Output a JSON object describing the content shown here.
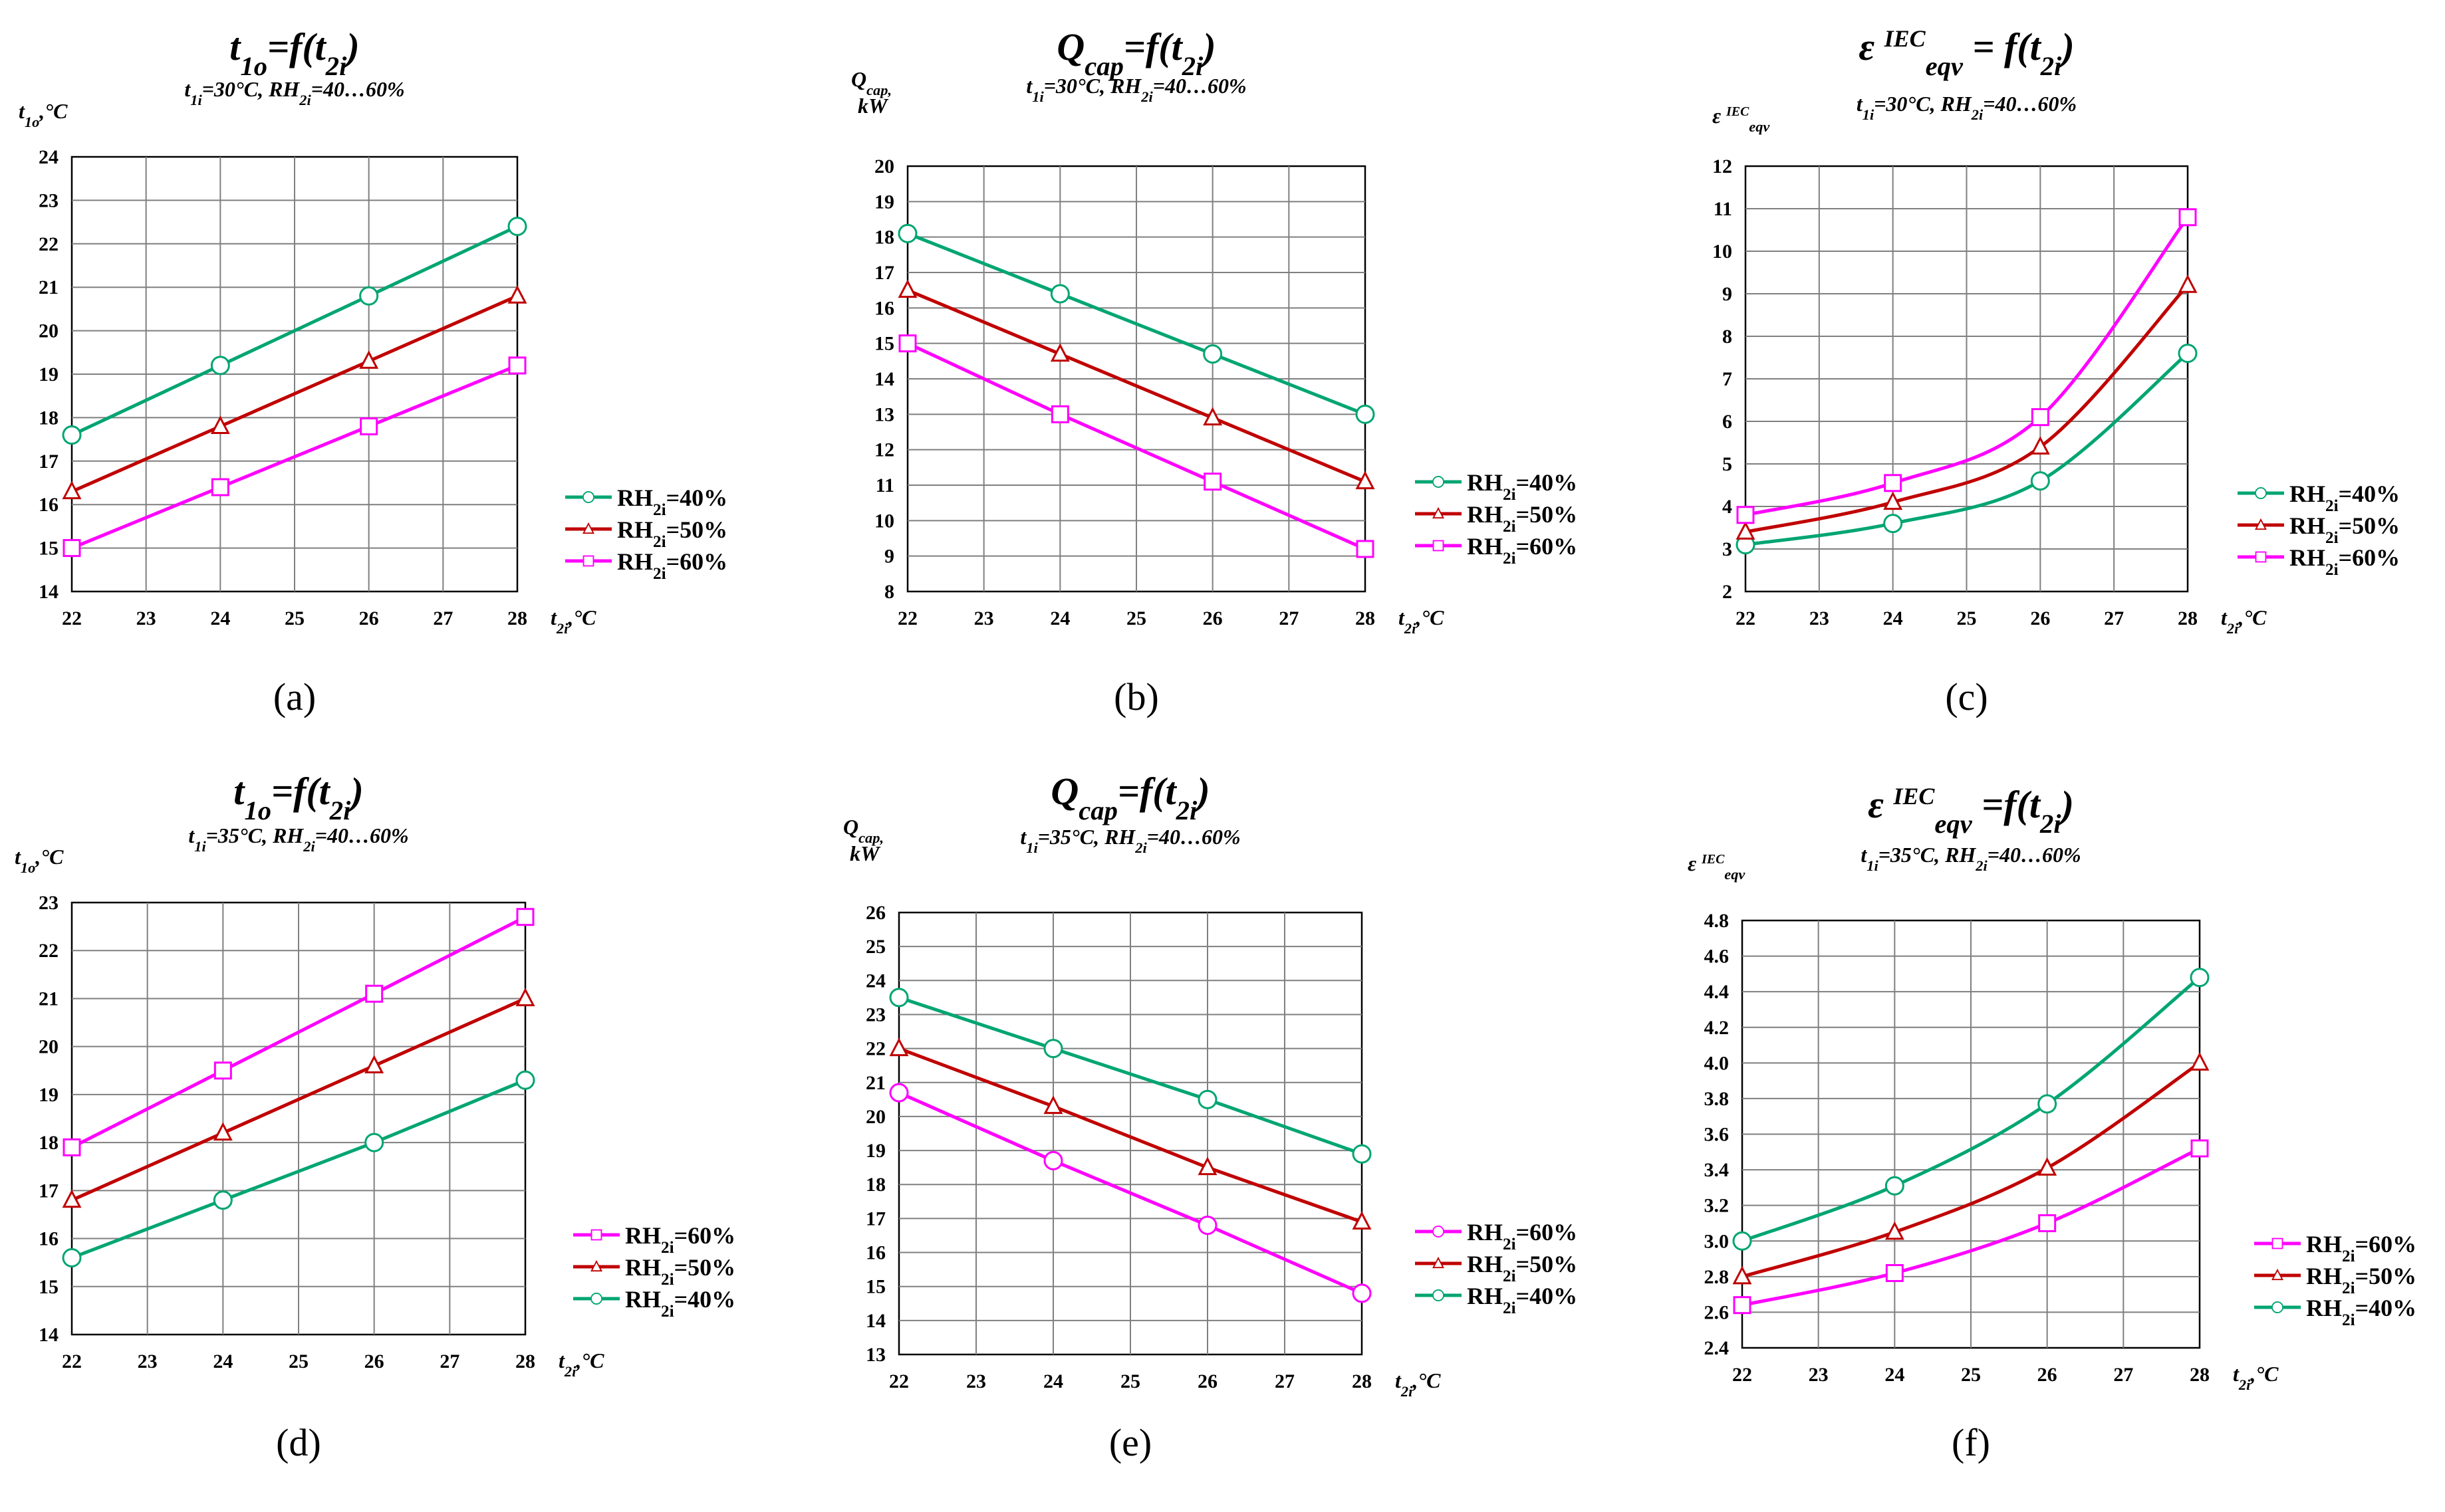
{
  "chart_data": [
    {
      "panel": "(a)",
      "type": "line",
      "title": "t1o=f(t2i)",
      "subtitle": "t1i=30°C, RH2i=40…60%",
      "ylabel": "t1o,°C",
      "xlabel": "t2i,°C",
      "xlim": [
        22,
        28
      ],
      "ylim": [
        14,
        24
      ],
      "ystep": 1,
      "yticks": [
        "14",
        "15",
        "16",
        "17",
        "18",
        "19",
        "20",
        "21",
        "22",
        "23",
        "24"
      ],
      "xticks": [
        "22",
        "23",
        "24",
        "25",
        "26",
        "27",
        "28"
      ],
      "x": [
        22,
        24,
        26,
        28
      ],
      "legend": "right",
      "series": [
        {
          "name": "RH2i=40%",
          "color": "#00a572",
          "marker": "circle",
          "values": [
            17.6,
            19.2,
            20.8,
            22.4
          ]
        },
        {
          "name": "RH2i=50%",
          "color": "#c00000",
          "marker": "triangle",
          "values": [
            16.3,
            17.8,
            19.3,
            20.8
          ]
        },
        {
          "name": "RH2i=60%",
          "color": "#ff00ff",
          "marker": "square",
          "values": [
            15.0,
            16.4,
            17.8,
            19.2
          ]
        }
      ]
    },
    {
      "panel": "(b)",
      "type": "line",
      "title": "Qcap=f(t2i)",
      "subtitle": "t1i=30°C, RH2i=40…60%",
      "ylabel": "Qcap, kW",
      "xlabel": "t2i,°C",
      "xlim": [
        22,
        28
      ],
      "ylim": [
        8,
        20
      ],
      "ystep": 1,
      "yticks": [
        "8",
        "9",
        "10",
        "11",
        "12",
        "13",
        "14",
        "15",
        "16",
        "17",
        "18",
        "19",
        "20"
      ],
      "xticks": [
        "22",
        "23",
        "24",
        "25",
        "26",
        "27",
        "28"
      ],
      "x": [
        22,
        24,
        26,
        28
      ],
      "legend": "right",
      "series": [
        {
          "name": "RH2i=40%",
          "color": "#00a572",
          "marker": "circle",
          "values": [
            18.1,
            16.4,
            14.7,
            13.0
          ]
        },
        {
          "name": "RH2i=50%",
          "color": "#c00000",
          "marker": "triangle",
          "values": [
            16.5,
            14.7,
            12.9,
            11.1
          ]
        },
        {
          "name": "RH2i=60%",
          "color": "#ff00ff",
          "marker": "square",
          "values": [
            15.0,
            13.0,
            11.1,
            9.2
          ]
        }
      ]
    },
    {
      "panel": "(c)",
      "type": "line",
      "title": "ε eqv IEC = f(t2i)",
      "subtitle": "t1i=30°C, RH2i=40…60%",
      "ylabel": "ε eqv IEC",
      "xlabel": "t2i,°C",
      "xlim": [
        22,
        28
      ],
      "ylim": [
        2,
        12
      ],
      "ystep": 1,
      "yticks": [
        "2",
        "3",
        "4",
        "5",
        "6",
        "7",
        "8",
        "9",
        "10",
        "11",
        "12"
      ],
      "xticks": [
        "22",
        "23",
        "24",
        "25",
        "26",
        "27",
        "28"
      ],
      "x": [
        22,
        24,
        26,
        28
      ],
      "smooth": true,
      "legend": "right",
      "series": [
        {
          "name": "RH2i=40%",
          "color": "#00a572",
          "marker": "circle",
          "values": [
            3.1,
            3.6,
            4.6,
            7.6
          ]
        },
        {
          "name": "RH2i=50%",
          "color": "#c00000",
          "marker": "triangle",
          "values": [
            3.4,
            4.1,
            5.4,
            9.2
          ]
        },
        {
          "name": "RH2i=60%",
          "color": "#ff00ff",
          "marker": "square",
          "values": [
            3.8,
            4.55,
            6.1,
            10.8
          ]
        }
      ]
    },
    {
      "panel": "(d)",
      "type": "line",
      "title": "t1o=f(t2i)",
      "subtitle": "t1i=35°C, RH2i=40…60%",
      "ylabel": "t1o,°C",
      "xlabel": "t2i,°C",
      "xlim": [
        22,
        28
      ],
      "ylim": [
        14,
        23
      ],
      "ystep": 1,
      "yticks": [
        "14",
        "15",
        "16",
        "17",
        "18",
        "19",
        "20",
        "21",
        "22",
        "23"
      ],
      "xticks": [
        "22",
        "23",
        "24",
        "25",
        "26",
        "27",
        "28"
      ],
      "x": [
        22,
        24,
        26,
        28
      ],
      "legend": "right",
      "series": [
        {
          "name": "RH2i=60%",
          "color": "#ff00ff",
          "marker": "square",
          "values": [
            17.9,
            19.5,
            21.1,
            22.7
          ]
        },
        {
          "name": "RH2i=50%",
          "color": "#c00000",
          "marker": "triangle",
          "values": [
            16.8,
            18.2,
            19.6,
            21.0
          ]
        },
        {
          "name": "RH2i=40%",
          "color": "#00a572",
          "marker": "circle",
          "values": [
            15.6,
            16.8,
            18.0,
            19.3
          ]
        }
      ]
    },
    {
      "panel": "(e)",
      "type": "line",
      "title": "Qcap=f(t2i)",
      "subtitle": "t1i=35°C, RH2i=40…60%",
      "ylabel": "Qcap, kW",
      "xlabel": "t2i,°C",
      "xlim": [
        22,
        28
      ],
      "ylim": [
        13,
        26
      ],
      "ystep": 1,
      "yticks": [
        "13",
        "14",
        "15",
        "16",
        "17",
        "18",
        "19",
        "20",
        "21",
        "22",
        "23",
        "24",
        "25",
        "26"
      ],
      "xticks": [
        "22",
        "23",
        "24",
        "25",
        "26",
        "27",
        "28"
      ],
      "x": [
        22,
        24,
        26,
        28
      ],
      "legend": "right",
      "series": [
        {
          "name": "RH2i=60%",
          "color": "#ff00ff",
          "marker": "circle",
          "values": [
            20.7,
            18.7,
            16.8,
            14.8
          ]
        },
        {
          "name": "RH2i=50%",
          "color": "#c00000",
          "marker": "triangle",
          "values": [
            22.0,
            20.3,
            18.5,
            16.9
          ]
        },
        {
          "name": "RH2i=40%",
          "color": "#00a572",
          "marker": "circle",
          "values": [
            23.5,
            22.0,
            20.5,
            18.9
          ]
        }
      ]
    },
    {
      "panel": "(f)",
      "type": "line",
      "title": "ε eqv IEC =f(t2i)",
      "subtitle": "t1i=35°C, RH2i=40…60%",
      "ylabel": "ε eqv IEC",
      "xlabel": "t2i,°C",
      "xlim": [
        22,
        28
      ],
      "ylim": [
        2.4,
        4.8
      ],
      "ystep": 0.2,
      "yticks": [
        "2.4",
        "2.6",
        "2.8",
        "3.0",
        "3.2",
        "3.4",
        "3.6",
        "3.8",
        "4.0",
        "4.2",
        "4.4",
        "4.6",
        "4.8"
      ],
      "xticks": [
        "22",
        "23",
        "24",
        "25",
        "26",
        "27",
        "28"
      ],
      "x": [
        22,
        24,
        26,
        28
      ],
      "smooth": true,
      "legend": "right",
      "series": [
        {
          "name": "RH2i=60%",
          "color": "#ff00ff",
          "marker": "square",
          "values": [
            2.64,
            2.82,
            3.1,
            3.52
          ]
        },
        {
          "name": "RH2i=50%",
          "color": "#c00000",
          "marker": "triangle",
          "values": [
            2.8,
            3.05,
            3.41,
            4.0
          ]
        },
        {
          "name": "RH2i=40%",
          "color": "#00a572",
          "marker": "circle",
          "values": [
            3.0,
            3.31,
            3.77,
            4.48
          ]
        }
      ]
    }
  ]
}
